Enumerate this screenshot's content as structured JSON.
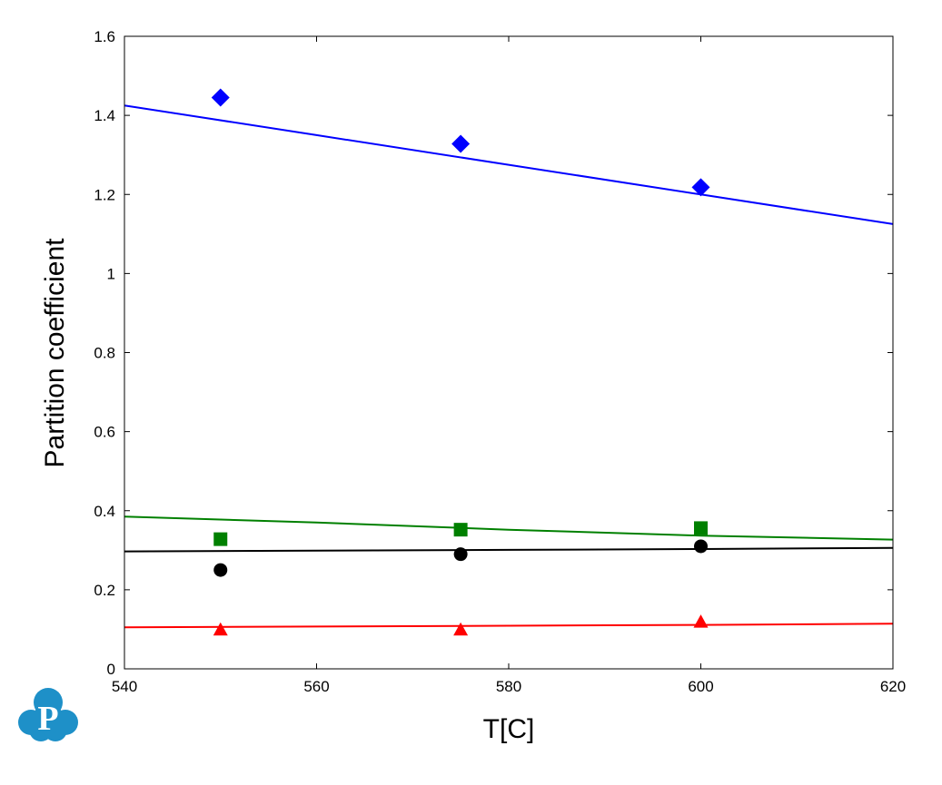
{
  "chart_data": {
    "type": "scatter",
    "title": "",
    "xlabel": "T[C]",
    "ylabel": "Partition coefficient",
    "xlim": [
      540,
      620
    ],
    "ylim": [
      0,
      1.6
    ],
    "xticks": [
      540,
      560,
      580,
      600,
      620
    ],
    "yticks": [
      0,
      0.2,
      0.4,
      0.6,
      0.8,
      1,
      1.2,
      1.4,
      1.6
    ],
    "xtick_labels": [
      "540",
      "560",
      "580",
      "600",
      "620"
    ],
    "ytick_labels": [
      "0",
      "0.2",
      "0.4",
      "0.6",
      "0.8",
      "1",
      "1.2",
      "1.4",
      "1.6"
    ],
    "grid": false,
    "legend": "none",
    "series": [
      {
        "color": "#0000ff",
        "marker": "diamond",
        "points": [
          [
            550,
            1.445
          ],
          [
            575,
            1.328
          ],
          [
            600,
            1.218
          ]
        ],
        "line": [
          [
            540,
            1.425
          ],
          [
            560,
            1.35
          ],
          [
            580,
            1.275
          ],
          [
            600,
            1.2
          ],
          [
            620,
            1.125
          ]
        ]
      },
      {
        "color": "#008000",
        "marker": "square",
        "points": [
          [
            550,
            0.328
          ],
          [
            575,
            0.352
          ],
          [
            600,
            0.356
          ]
        ],
        "line": [
          [
            540,
            0.385
          ],
          [
            560,
            0.37
          ],
          [
            580,
            0.352
          ],
          [
            600,
            0.337
          ],
          [
            620,
            0.327
          ]
        ]
      },
      {
        "color": "#000000",
        "marker": "circle",
        "points": [
          [
            550,
            0.25
          ],
          [
            575,
            0.29
          ],
          [
            600,
            0.31
          ]
        ],
        "line": [
          [
            540,
            0.297
          ],
          [
            560,
            0.299
          ],
          [
            580,
            0.301
          ],
          [
            600,
            0.303
          ],
          [
            620,
            0.306
          ]
        ]
      },
      {
        "color": "#ff0000",
        "marker": "triangle",
        "points": [
          [
            550,
            0.098
          ],
          [
            575,
            0.098
          ],
          [
            600,
            0.118
          ]
        ],
        "line": [
          [
            540,
            0.105
          ],
          [
            560,
            0.107
          ],
          [
            580,
            0.109
          ],
          [
            600,
            0.111
          ],
          [
            620,
            0.114
          ]
        ]
      }
    ]
  },
  "logo": {
    "letter": "P",
    "color": "#1e90c8"
  }
}
